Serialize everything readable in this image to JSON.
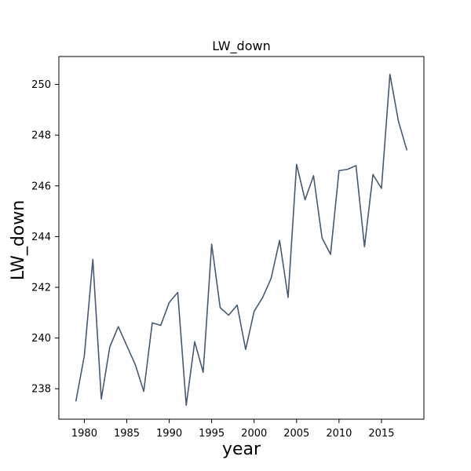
{
  "chart_data": {
    "type": "line",
    "title": "LW_down",
    "xlabel": "year",
    "ylabel": "LW_down",
    "xlim": [
      1977,
      2020
    ],
    "ylim": [
      236.8,
      251.1
    ],
    "xticks": [
      1980,
      1985,
      1990,
      1995,
      2000,
      2005,
      2010,
      2015
    ],
    "yticks": [
      238,
      240,
      242,
      244,
      246,
      248,
      250
    ],
    "grid": false,
    "line_color": "#475a70",
    "series": [
      {
        "x": [
          1979,
          1980,
          1981,
          1982,
          1983,
          1984,
          1985,
          1986,
          1987,
          1988,
          1989,
          1990,
          1991,
          1992,
          1993,
          1994,
          1995,
          1996,
          1997,
          1998,
          1999,
          2000,
          2001,
          2002,
          2003,
          2004,
          2005,
          2006,
          2007,
          2008,
          2009,
          2010,
          2011,
          2012,
          2013,
          2014,
          2015,
          2016,
          2017,
          2018
        ],
        "values": [
          237.5,
          239.3,
          243.1,
          237.6,
          239.65,
          240.45,
          239.7,
          238.95,
          237.9,
          240.6,
          240.5,
          241.4,
          241.8,
          237.35,
          239.85,
          238.65,
          243.7,
          241.2,
          240.9,
          241.3,
          239.55,
          241.05,
          241.6,
          242.35,
          243.85,
          241.6,
          246.85,
          245.45,
          246.4,
          243.95,
          243.3,
          246.6,
          246.65,
          246.8,
          243.6,
          246.45,
          245.9,
          250.4,
          248.55,
          247.4
        ]
      }
    ]
  }
}
